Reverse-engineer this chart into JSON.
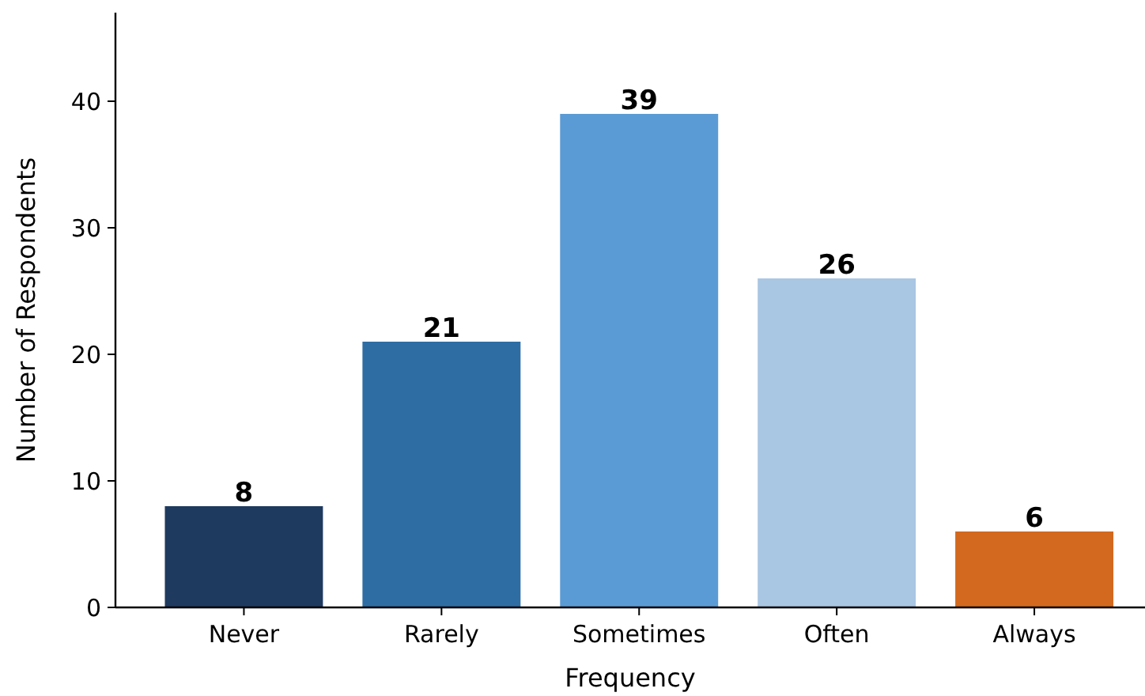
{
  "chart_data": {
    "type": "bar",
    "xlabel": "Frequency",
    "ylabel": "Number of Respondents",
    "categories": [
      "Never",
      "Rarely",
      "Sometimes",
      "Often",
      "Always"
    ],
    "values": [
      8,
      21,
      39,
      26,
      6
    ],
    "colors": [
      "#1f3a5f",
      "#2e6da4",
      "#5b9bd5",
      "#a9c6e3",
      "#d2691e"
    ],
    "ylim": [
      0,
      47
    ],
    "yticks": [
      0,
      10,
      20,
      30,
      40
    ],
    "data_labels": true
  }
}
